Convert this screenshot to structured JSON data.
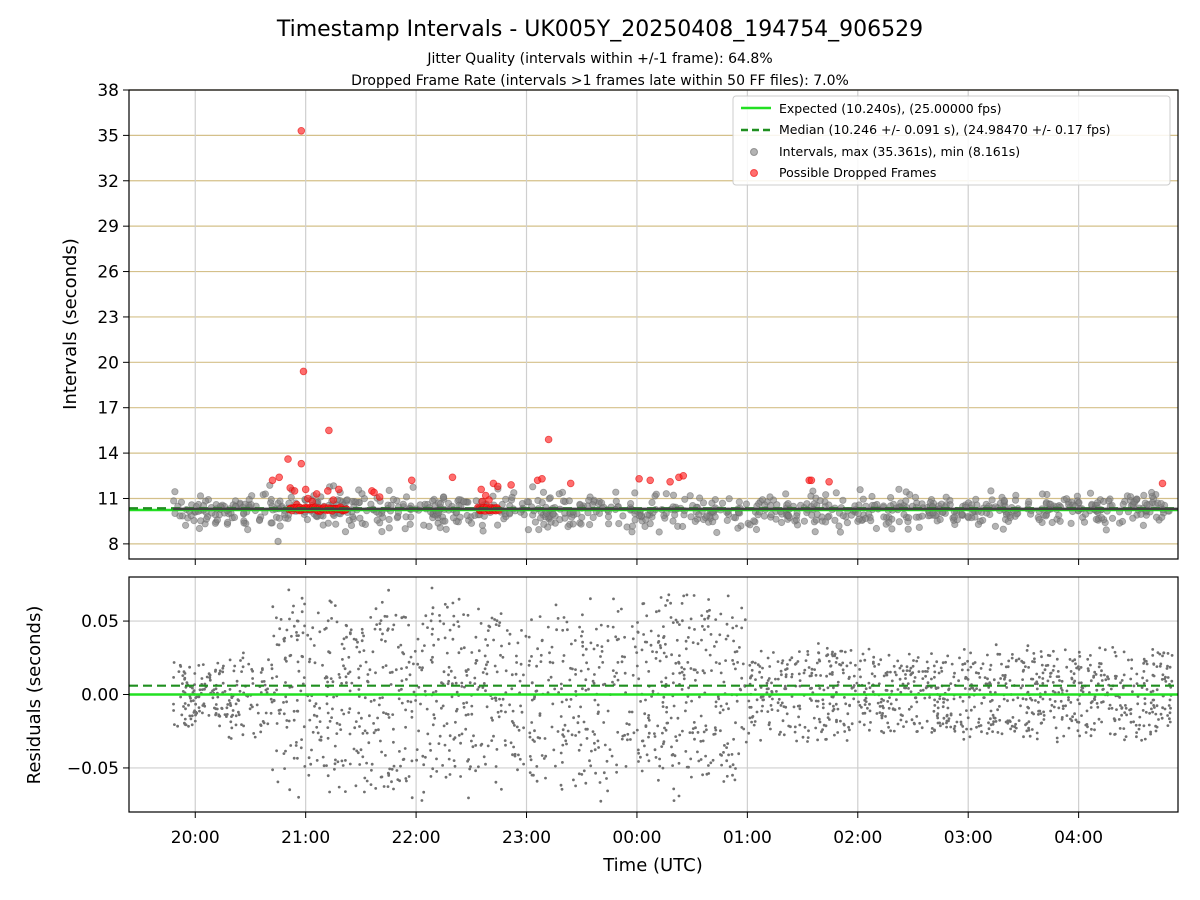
{
  "chart_data": [
    {
      "type": "scatter",
      "title": "Timestamp Intervals - UK005Y_20250408_194754_906529",
      "subtitle_lines": [
        "Jitter Quality (intervals within +/-1 frame): 64.8%",
        "Dropped Frame Rate (intervals >1 frames late within 50 FF files): 7.0%"
      ],
      "xlabel": "",
      "ylabel": "Intervals (seconds)",
      "x_unit": "hours since 20:00 UTC (axis shows clock time)",
      "xlim": [
        -0.6,
        8.9
      ],
      "ylim": [
        7,
        38
      ],
      "yticks": [
        8,
        11,
        14,
        17,
        20,
        23,
        26,
        29,
        32,
        35,
        38
      ],
      "xticks": [
        0,
        1,
        2,
        3,
        4,
        5,
        6,
        7,
        8
      ],
      "xtick_labels": [
        "20:00",
        "21:00",
        "22:00",
        "23:00",
        "00:00",
        "01:00",
        "02:00",
        "03:00",
        "04:00"
      ],
      "grid": true,
      "legend_position": "top-right",
      "series": [
        {
          "name": "Expected (10.240s), (25.00000 fps)",
          "style": "solid-line",
          "color": "#22e022",
          "y": 10.24
        },
        {
          "name": "Median (10.246 +/- 0.091 s), (24.98470 +/- 0.17 fps)",
          "style": "dashed-line",
          "color": "#1f8f1f",
          "y": 10.246
        },
        {
          "name": "Intervals, max (35.361s), min (8.161s)",
          "style": "marker",
          "color": "#808080",
          "max": 35.361,
          "min": 8.161,
          "x_range": [
            -0.2,
            8.85
          ]
        },
        {
          "name": "Possible Dropped Frames",
          "style": "marker",
          "color": "#ff2020",
          "points": [
            [
              0.96,
              35.3
            ],
            [
              0.98,
              19.4
            ],
            [
              0.84,
              13.6
            ],
            [
              0.96,
              13.3
            ],
            [
              1.21,
              15.5
            ],
            [
              3.2,
              14.9
            ],
            [
              0.7,
              12.2
            ],
            [
              0.76,
              12.4
            ],
            [
              0.86,
              11.7
            ],
            [
              0.9,
              11.5
            ],
            [
              1.0,
              11.6
            ],
            [
              1.02,
              11.0
            ],
            [
              1.1,
              11.3
            ],
            [
              1.2,
              11.5
            ],
            [
              1.3,
              11.6
            ],
            [
              1.6,
              11.5
            ],
            [
              1.62,
              11.4
            ],
            [
              1.67,
              11.1
            ],
            [
              1.96,
              12.2
            ],
            [
              2.33,
              12.4
            ],
            [
              2.59,
              11.6
            ],
            [
              2.63,
              11.2
            ],
            [
              2.7,
              12.0
            ],
            [
              2.74,
              11.8
            ],
            [
              2.86,
              11.9
            ],
            [
              3.1,
              12.2
            ],
            [
              3.14,
              12.3
            ],
            [
              3.4,
              12.0
            ],
            [
              4.02,
              12.3
            ],
            [
              4.12,
              12.2
            ],
            [
              4.3,
              12.1
            ],
            [
              4.38,
              12.4
            ],
            [
              4.42,
              12.5
            ],
            [
              5.56,
              12.2
            ],
            [
              5.58,
              12.2
            ],
            [
              5.74,
              12.1
            ],
            [
              8.76,
              12.0
            ],
            [
              0.92,
              10.6
            ],
            [
              1.06,
              10.8
            ],
            [
              1.25,
              10.9
            ],
            [
              2.6,
              10.8
            ],
            [
              2.66,
              10.9
            ]
          ],
          "clusters": [
            {
              "x_from": 0.85,
              "x_to": 1.37,
              "y": 10.3
            },
            {
              "x_from": 2.56,
              "x_to": 2.75,
              "y": 10.3
            }
          ]
        }
      ]
    },
    {
      "type": "scatter",
      "title": "",
      "xlabel": "Time (UTC)",
      "ylabel": "Residuals (seconds)",
      "x_unit": "hours since 20:00 UTC (axis shows clock time)",
      "xlim": [
        -0.6,
        8.9
      ],
      "ylim": [
        -0.08,
        0.08
      ],
      "yticks": [
        -0.05,
        0.0,
        0.05
      ],
      "ytick_labels": [
        "−0.05",
        "0.00",
        "0.05"
      ],
      "xticks": [
        0,
        1,
        2,
        3,
        4,
        5,
        6,
        7,
        8
      ],
      "xtick_labels": [
        "20:00",
        "21:00",
        "22:00",
        "23:00",
        "00:00",
        "01:00",
        "02:00",
        "03:00",
        "04:00"
      ],
      "grid": true,
      "series": [
        {
          "style": "solid-line",
          "color": "#22e022",
          "y": 0.0
        },
        {
          "style": "dashed-line",
          "color": "#1f8f1f",
          "y": 0.006
        },
        {
          "style": "marker",
          "color": "#707070",
          "x_range": [
            -0.2,
            8.85
          ],
          "spread_wide": 0.075,
          "spread_narrow": 0.035
        }
      ]
    }
  ]
}
